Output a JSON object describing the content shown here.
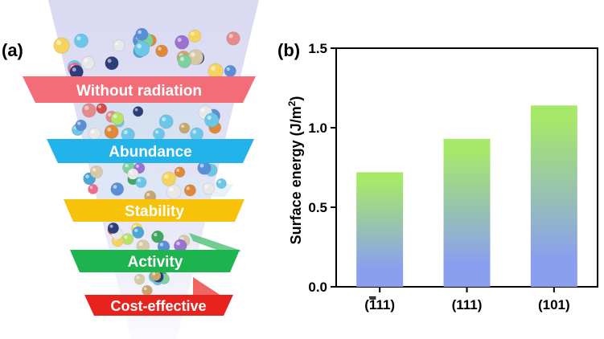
{
  "panel_a": {
    "label": "(a)",
    "bands": [
      {
        "text": "Without radiation",
        "color": "#f26d78"
      },
      {
        "text": "Abundance",
        "color": "#22b3ea"
      },
      {
        "text": "Stability",
        "color": "#f7c20a"
      },
      {
        "text": "Activity",
        "color": "#1db34e"
      },
      {
        "text": "Cost-effective",
        "color": "#e8231e"
      }
    ]
  },
  "chart_data": {
    "panel_label": "(b)",
    "type": "bar",
    "categories": [
      "(̅1̅11)",
      "(111)",
      "(101)"
    ],
    "category_labels": [
      {
        "open": "(",
        "overbar": "1",
        "rest": "11)"
      },
      {
        "open": "(",
        "overbar": "",
        "rest": "111)"
      },
      {
        "open": "(",
        "overbar": "",
        "rest": "101)"
      }
    ],
    "values": [
      0.72,
      0.93,
      1.14
    ],
    "ylabel_main": "Surface energy (J/m",
    "ylabel_sup": "2",
    "ylabel_close": ")",
    "ylim": [
      0,
      1.5
    ],
    "yticks": [
      "0.0",
      "0.5",
      "1.0",
      "1.5"
    ],
    "bar_gradient": {
      "top": "#a6e86a",
      "bottom": "#8a9ff0"
    }
  }
}
